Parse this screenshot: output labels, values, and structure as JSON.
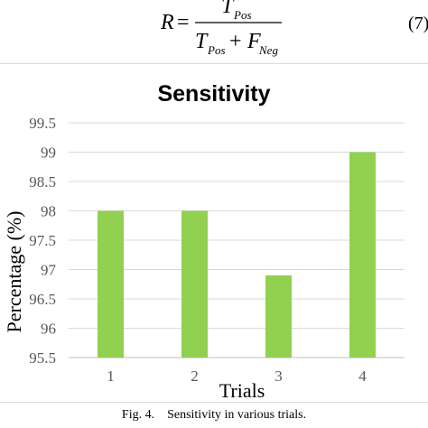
{
  "equation": {
    "lhs": "R",
    "equals": "=",
    "numerator_base": "T",
    "numerator_sub": "Pos",
    "denominator_t": "T",
    "denominator_t_sub": "Pos",
    "plus": "+",
    "denominator_f": "F",
    "denominator_f_sub": "Neg",
    "number": "(7)"
  },
  "chart_data": {
    "type": "bar",
    "title": "Sensitivity",
    "xlabel": "Trials",
    "ylabel": "Percentage (%)",
    "categories": [
      "1",
      "2",
      "3",
      "4"
    ],
    "values": [
      98.0,
      98.0,
      96.9,
      99.0
    ],
    "ylim": [
      95.5,
      99.5
    ],
    "yticks": [
      "95.5",
      "96",
      "96.5",
      "97",
      "97.5",
      "98",
      "98.5",
      "99",
      "99.5"
    ],
    "grid": true,
    "bar_color": "#92d050",
    "grid_color": "#d9d9d9"
  },
  "caption": "Fig. 4.    Sensitivity in various trials."
}
